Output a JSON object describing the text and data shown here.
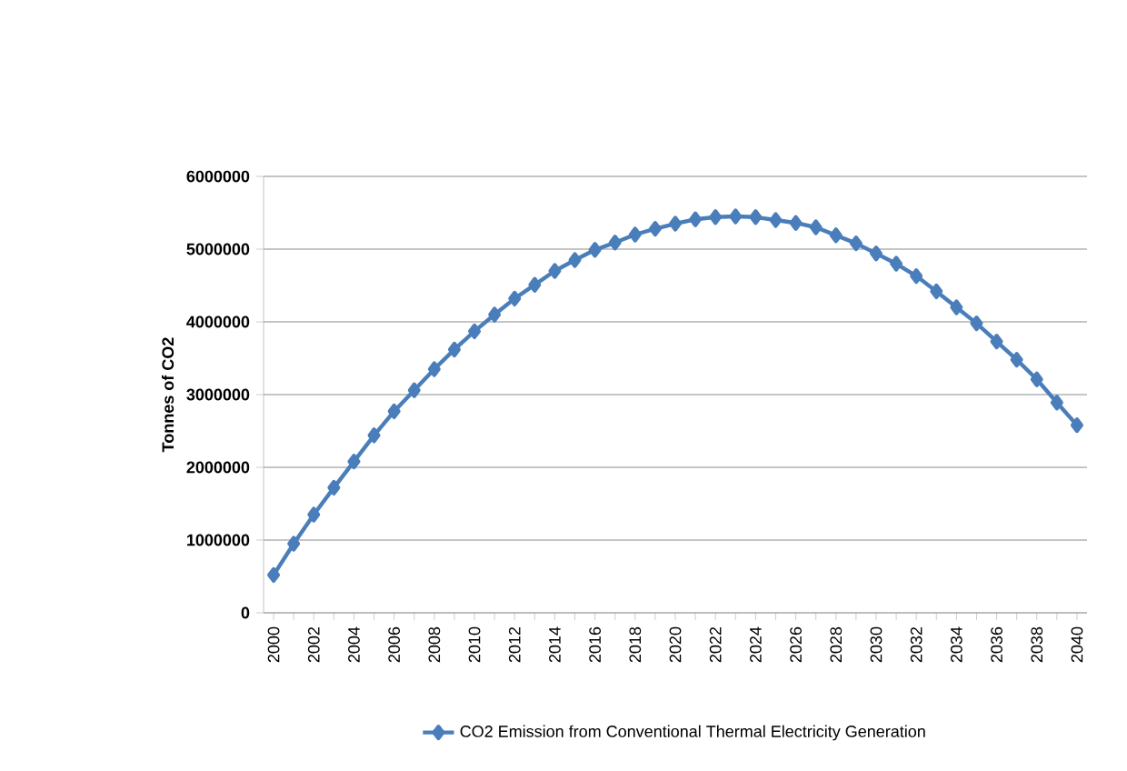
{
  "chart_data": {
    "type": "line",
    "ylabel": "Tonnes of CO2",
    "categories": [
      "2000",
      null,
      "2002",
      null,
      "2004",
      null,
      "2006",
      null,
      "2008",
      null,
      "2010",
      null,
      "2012",
      null,
      "2014",
      null,
      "2016",
      null,
      "2018",
      null,
      "2020",
      null,
      "2022",
      null,
      "2024",
      null,
      "2026",
      null,
      "2028",
      null,
      "2030",
      null,
      "2032",
      null,
      "2034",
      null,
      "2036",
      null,
      "2038",
      null,
      "2040"
    ],
    "series": [
      {
        "name": "CO2 Emission from Conventional Thermal Electricity Generation",
        "color": "#4a7ebb",
        "values": [
          520000,
          950000,
          1350000,
          1720000,
          2080000,
          2440000,
          2770000,
          3060000,
          3350000,
          3620000,
          3870000,
          4100000,
          4320000,
          4510000,
          4700000,
          4850000,
          4990000,
          5090000,
          5200000,
          5280000,
          5350000,
          5410000,
          5440000,
          5450000,
          5440000,
          5400000,
          5360000,
          5300000,
          5190000,
          5080000,
          4940000,
          4800000,
          4630000,
          4420000,
          4200000,
          3980000,
          3730000,
          3480000,
          3210000,
          2890000,
          2580000
        ]
      }
    ],
    "ylim": [
      0,
      6000000
    ],
    "yticks": [
      0,
      1000000,
      2000000,
      3000000,
      4000000,
      5000000,
      6000000
    ],
    "grid": "y",
    "legend": "bottom",
    "marker": "diamond",
    "line_style": "solid"
  }
}
